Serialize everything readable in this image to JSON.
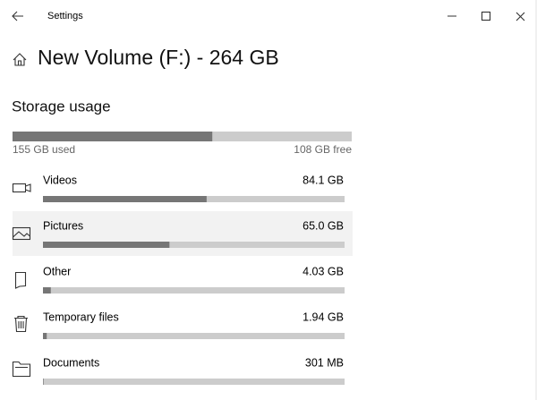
{
  "window": {
    "title": "Settings"
  },
  "header": {
    "title": "New Volume (F:) - 264 GB"
  },
  "storage": {
    "heading": "Storage usage",
    "used": {
      "label": "155 GB used",
      "value": 155
    },
    "free": {
      "label": "108 GB free",
      "value": 108
    },
    "items": [
      {
        "label": "Videos",
        "size": "84.1 GB",
        "value": 84.1
      },
      {
        "label": "Pictures",
        "size": "65.0 GB",
        "value": 65.0
      },
      {
        "label": "Other",
        "size": "4.03 GB",
        "value": 4.03
      },
      {
        "label": "Temporary files",
        "size": "1.94 GB",
        "value": 1.94
      },
      {
        "label": "Documents",
        "size": "301 MB",
        "value": 0.301
      }
    ]
  }
}
